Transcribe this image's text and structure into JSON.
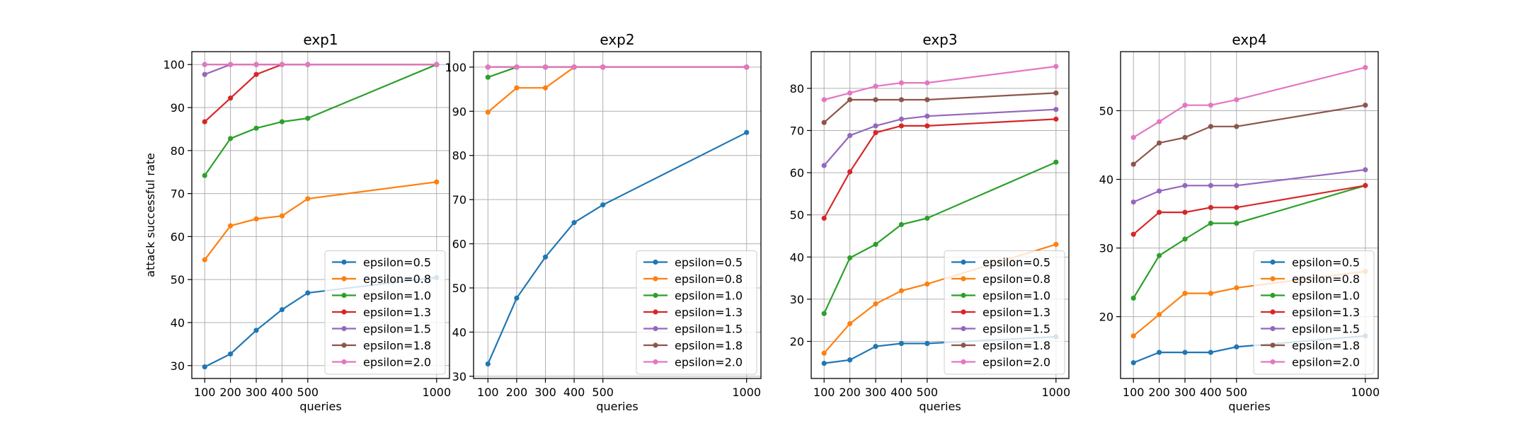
{
  "figure": {
    "ylabel": "attack successful rate",
    "xlabel": "queries"
  },
  "series_style": [
    {
      "name": "epsilon=0.5",
      "color": "#1f77b4"
    },
    {
      "name": "epsilon=0.8",
      "color": "#ff7f0e"
    },
    {
      "name": "epsilon=1.0",
      "color": "#2ca02c"
    },
    {
      "name": "epsilon=1.3",
      "color": "#d62728"
    },
    {
      "name": "epsilon=1.5",
      "color": "#9467bd"
    },
    {
      "name": "epsilon=1.8",
      "color": "#8c564b"
    },
    {
      "name": "epsilon=2.0",
      "color": "#e377c2"
    }
  ],
  "chart_data": [
    {
      "type": "line",
      "title": "exp1",
      "xlabel": "queries",
      "ylabel": "attack successful rate",
      "x": [
        100,
        200,
        300,
        400,
        500,
        1000
      ],
      "xticks": [
        100,
        200,
        300,
        400,
        500,
        1000
      ],
      "xlim": [
        50,
        1050
      ],
      "yticks": [
        30,
        40,
        50,
        60,
        70,
        80,
        90,
        100
      ],
      "ylim": [
        27,
        103
      ],
      "grid": true,
      "legend": "lower-right",
      "series": [
        {
          "name": "epsilon=0.5",
          "values": [
            29.7,
            32.7,
            38.2,
            43.0,
            46.9,
            50.5
          ]
        },
        {
          "name": "epsilon=0.8",
          "values": [
            54.6,
            62.5,
            64.1,
            64.8,
            68.8,
            72.7
          ]
        },
        {
          "name": "epsilon=1.0",
          "values": [
            74.2,
            82.8,
            85.2,
            86.7,
            87.5,
            100.0
          ]
        },
        {
          "name": "epsilon=1.3",
          "values": [
            86.7,
            92.2,
            97.7,
            100.0,
            100.0,
            100.0
          ]
        },
        {
          "name": "epsilon=1.5",
          "values": [
            97.7,
            100.0,
            100.0,
            100.0,
            100.0,
            100.0
          ]
        },
        {
          "name": "epsilon=1.8",
          "values": [
            100.0,
            100.0,
            100.0,
            100.0,
            100.0,
            100.0
          ]
        },
        {
          "name": "epsilon=2.0",
          "values": [
            100.0,
            100.0,
            100.0,
            100.0,
            100.0,
            100.0
          ]
        }
      ]
    },
    {
      "type": "line",
      "title": "exp2",
      "xlabel": "queries",
      "ylabel": "",
      "x": [
        100,
        200,
        300,
        400,
        500,
        1000
      ],
      "xticks": [
        100,
        200,
        300,
        400,
        500,
        1000
      ],
      "xlim": [
        50,
        1050
      ],
      "yticks": [
        30,
        40,
        50,
        60,
        70,
        80,
        90,
        100
      ],
      "ylim": [
        29.5,
        103.5
      ],
      "grid": true,
      "legend": "lower-right",
      "series": [
        {
          "name": "epsilon=0.5",
          "values": [
            32.8,
            47.7,
            57.0,
            64.8,
            68.8,
            85.2
          ]
        },
        {
          "name": "epsilon=0.8",
          "values": [
            89.8,
            95.3,
            95.3,
            100.0,
            100.0,
            100.0
          ]
        },
        {
          "name": "epsilon=1.0",
          "values": [
            97.7,
            100.0,
            100.0,
            100.0,
            100.0,
            100.0
          ]
        },
        {
          "name": "epsilon=1.3",
          "values": [
            100.0,
            100.0,
            100.0,
            100.0,
            100.0,
            100.0
          ]
        },
        {
          "name": "epsilon=1.5",
          "values": [
            100.0,
            100.0,
            100.0,
            100.0,
            100.0,
            100.0
          ]
        },
        {
          "name": "epsilon=1.8",
          "values": [
            100.0,
            100.0,
            100.0,
            100.0,
            100.0,
            100.0
          ]
        },
        {
          "name": "epsilon=2.0",
          "values": [
            100.0,
            100.0,
            100.0,
            100.0,
            100.0,
            100.0
          ]
        }
      ]
    },
    {
      "type": "line",
      "title": "exp3",
      "xlabel": "queries",
      "ylabel": "",
      "x": [
        100,
        200,
        300,
        400,
        500,
        1000
      ],
      "xticks": [
        100,
        200,
        300,
        400,
        500,
        1000
      ],
      "xlim": [
        50,
        1050
      ],
      "yticks": [
        20,
        30,
        40,
        50,
        60,
        70,
        80
      ],
      "ylim": [
        11.2,
        88.7
      ],
      "grid": true,
      "legend": "lower-right",
      "series": [
        {
          "name": "epsilon=0.5",
          "values": [
            14.8,
            15.6,
            18.8,
            19.5,
            19.5,
            21.1
          ]
        },
        {
          "name": "epsilon=0.8",
          "values": [
            17.2,
            24.2,
            28.9,
            32.0,
            33.6,
            43.0
          ]
        },
        {
          "name": "epsilon=1.0",
          "values": [
            26.6,
            39.8,
            43.0,
            47.7,
            49.2,
            62.5
          ]
        },
        {
          "name": "epsilon=1.3",
          "values": [
            49.2,
            60.2,
            69.5,
            71.1,
            71.1,
            72.7
          ]
        },
        {
          "name": "epsilon=1.5",
          "values": [
            61.7,
            68.8,
            71.1,
            72.7,
            73.4,
            75.0
          ]
        },
        {
          "name": "epsilon=1.8",
          "values": [
            71.9,
            77.3,
            77.3,
            77.3,
            77.3,
            78.9
          ]
        },
        {
          "name": "epsilon=2.0",
          "values": [
            77.3,
            78.9,
            80.5,
            81.3,
            81.3,
            85.2
          ]
        }
      ]
    },
    {
      "type": "line",
      "title": "exp4",
      "xlabel": "queries",
      "ylabel": "",
      "x": [
        100,
        200,
        300,
        400,
        500,
        1000
      ],
      "xticks": [
        100,
        200,
        300,
        400,
        500,
        1000
      ],
      "xlim": [
        50,
        1050
      ],
      "yticks": [
        20,
        30,
        40,
        50
      ],
      "ylim": [
        11.0,
        58.6
      ],
      "grid": true,
      "legend": "lower-right",
      "series": [
        {
          "name": "epsilon=0.5",
          "values": [
            13.3,
            14.8,
            14.8,
            14.8,
            15.6,
            17.2
          ]
        },
        {
          "name": "epsilon=0.8",
          "values": [
            17.2,
            20.3,
            23.4,
            23.4,
            24.2,
            26.6
          ]
        },
        {
          "name": "epsilon=1.0",
          "values": [
            22.7,
            28.9,
            31.3,
            33.6,
            33.6,
            39.1
          ]
        },
        {
          "name": "epsilon=1.3",
          "values": [
            32.0,
            35.2,
            35.2,
            35.9,
            35.9,
            39.1
          ]
        },
        {
          "name": "epsilon=1.5",
          "values": [
            36.7,
            38.3,
            39.1,
            39.1,
            39.1,
            41.4
          ]
        },
        {
          "name": "epsilon=1.8",
          "values": [
            42.2,
            45.3,
            46.1,
            47.7,
            47.7,
            50.8
          ]
        },
        {
          "name": "epsilon=2.0",
          "values": [
            46.1,
            48.4,
            50.8,
            50.8,
            51.6,
            56.3
          ]
        }
      ]
    }
  ]
}
